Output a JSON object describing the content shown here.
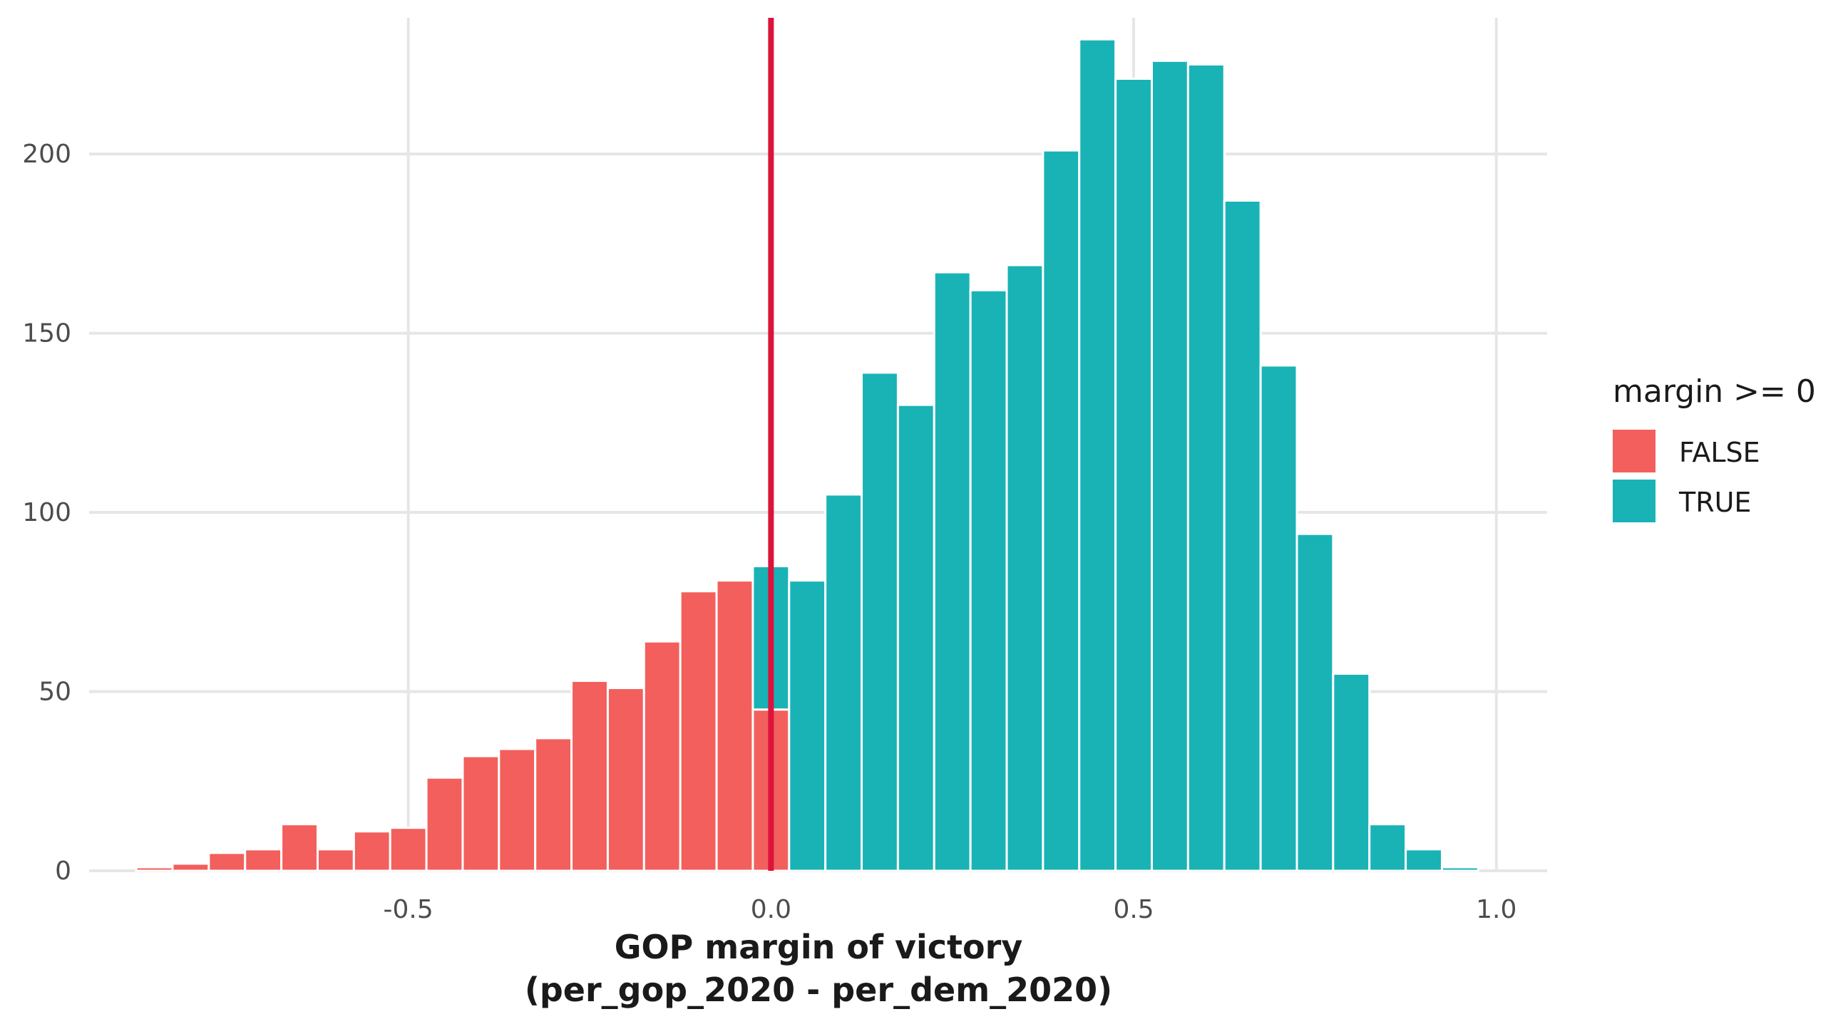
{
  "chart_data": {
    "type": "bar",
    "subtype": "stacked-histogram",
    "xlabel_line1": "GOP margin of victory",
    "xlabel_line2": "(per_gop_2020 - per_dem_2020)",
    "ylabel": "",
    "xlim": [
      -0.94,
      1.07
    ],
    "ylim": [
      0,
      238
    ],
    "x_ticks": [
      -0.5,
      0.0,
      0.5,
      1.0
    ],
    "x_tick_labels": [
      "-0.5",
      "0.0",
      "0.5",
      "1.0"
    ],
    "y_ticks": [
      0,
      50,
      100,
      150,
      200
    ],
    "y_tick_labels": [
      "0",
      "50",
      "100",
      "150",
      "200"
    ],
    "grid": true,
    "bin_width": 0.05,
    "bin_centers": [
      -0.85,
      -0.8,
      -0.75,
      -0.7,
      -0.65,
      -0.6,
      -0.55,
      -0.5,
      -0.45,
      -0.4,
      -0.35,
      -0.3,
      -0.25,
      -0.2,
      -0.15,
      -0.1,
      -0.05,
      0.0,
      0.05,
      0.1,
      0.15,
      0.2,
      0.25,
      0.3,
      0.35,
      0.4,
      0.45,
      0.5,
      0.55,
      0.6,
      0.65,
      0.7,
      0.75,
      0.8,
      0.85,
      0.9,
      0.95
    ],
    "series": [
      {
        "name": "FALSE",
        "color": "#f25f5c",
        "values": [
          1,
          2,
          5,
          6,
          13,
          6,
          11,
          12,
          26,
          32,
          34,
          37,
          53,
          51,
          64,
          78,
          81,
          45,
          0,
          0,
          0,
          0,
          0,
          0,
          0,
          0,
          0,
          0,
          0,
          0,
          0,
          0,
          0,
          0,
          0,
          0,
          0
        ]
      },
      {
        "name": "TRUE",
        "color": "#19b3b6",
        "values": [
          0,
          0,
          0,
          0,
          0,
          0,
          0,
          0,
          0,
          0,
          0,
          0,
          0,
          0,
          0,
          0,
          0,
          40,
          81,
          105,
          139,
          130,
          167,
          162,
          169,
          201,
          232,
          221,
          226,
          225,
          187,
          141,
          94,
          55,
          13,
          6,
          1
        ]
      }
    ],
    "reference_line": {
      "x": 0.0,
      "color": "#dc143c"
    },
    "legend": {
      "title": "margin >= 0",
      "position": "right"
    }
  }
}
